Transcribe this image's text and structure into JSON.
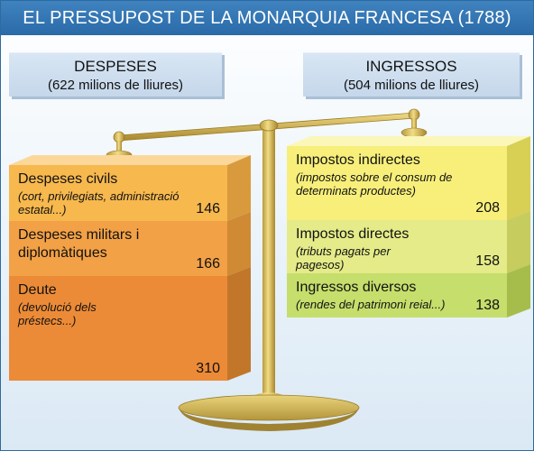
{
  "title": "EL PRESSUPOST DE LA MONARQUIA FRANCESA (1788)",
  "despeses": {
    "label": "DESPESES",
    "sublabel": "(622 milions de lliures)",
    "items": [
      {
        "name": "Despeses civils",
        "detail": "(cort, privilegiats, administració estatal...)",
        "value": "146",
        "color": "#f7b84e"
      },
      {
        "name": "Despeses militars i diplomàtiques",
        "detail": "",
        "value": "166",
        "color": "#f3a146"
      },
      {
        "name": "Deute",
        "detail": "(devolució dels préstecs...)",
        "value": "310",
        "color": "#ec8b37"
      }
    ]
  },
  "ingressos": {
    "label": "INGRESSOS",
    "sublabel": "(504 milions de lliures)",
    "items": [
      {
        "name": "Impostos indirectes",
        "detail": "(impostos sobre el consum de determinats productes)",
        "value": "208",
        "color": "#f7ef7a"
      },
      {
        "name": "Impostos directes",
        "detail": "(tributs pagats per pagesos)",
        "value": "158",
        "color": "#e4eb88"
      },
      {
        "name": "Ingressos diversos",
        "detail": "(rendes del patrimoni reial...)",
        "value": "138",
        "color": "#c6de6c"
      }
    ]
  }
}
